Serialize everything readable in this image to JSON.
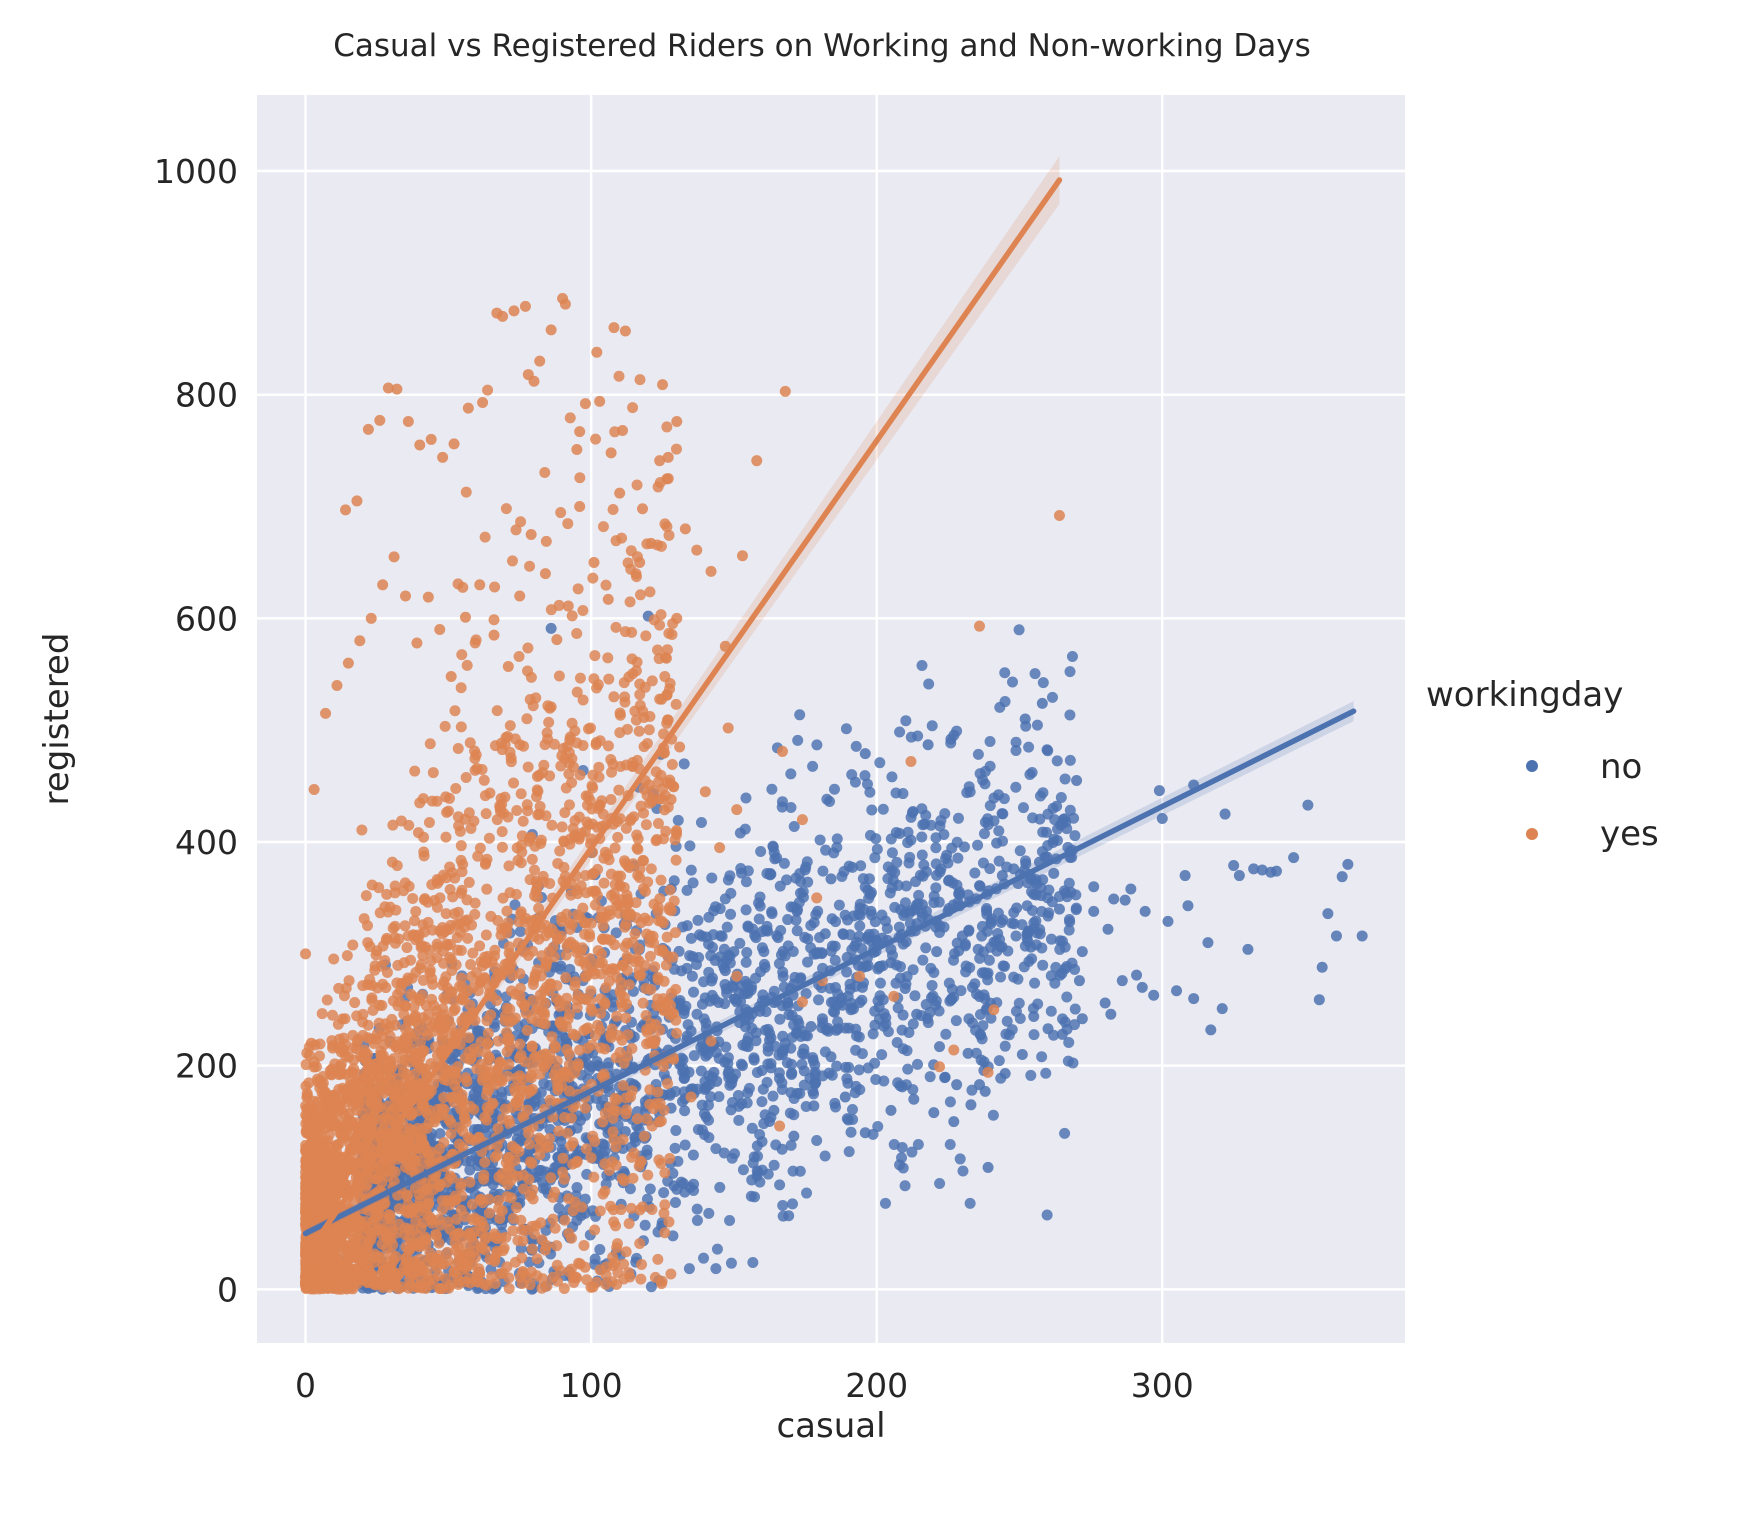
{
  "chart_data": {
    "type": "scatter",
    "title": "Casual vs Registered Riders on Working and Non-working Days",
    "xlabel": "casual",
    "ylabel": "registered",
    "xlim": [
      -17,
      385
    ],
    "ylim": [
      -48,
      1068
    ],
    "xticks": [
      0,
      100,
      200,
      300
    ],
    "yticks": [
      0,
      200,
      400,
      600,
      800,
      1000
    ],
    "grid": true,
    "legend": {
      "title": "workingday",
      "placement": "right"
    },
    "series": [
      {
        "name": "no",
        "color": "#4c72b0",
        "regression": {
          "x": [
            0,
            367
          ],
          "y": [
            50,
            517
          ]
        },
        "points": [
          [
            361,
            316
          ],
          [
            355,
            259
          ],
          [
            351,
            433
          ],
          [
            363,
            369
          ],
          [
            365,
            380
          ],
          [
            356,
            288
          ],
          [
            358,
            336
          ],
          [
            370,
            316
          ],
          [
            322,
            425
          ],
          [
            327,
            370
          ],
          [
            330,
            304
          ],
          [
            335,
            375
          ],
          [
            317,
            232
          ],
          [
            305,
            267
          ],
          [
            309,
            343
          ],
          [
            299,
            446
          ],
          [
            293,
            270
          ],
          [
            286,
            276
          ],
          [
            282,
            246
          ],
          [
            276,
            338
          ],
          [
            271,
            276
          ],
          [
            266,
            239
          ],
          [
            255,
            244
          ],
          [
            258,
            524
          ],
          [
            252,
            510
          ],
          [
            244,
            370
          ],
          [
            239,
            109
          ],
          [
            236,
            183
          ],
          [
            232,
            211
          ],
          [
            227,
            150
          ],
          [
            222,
            217
          ],
          [
            214,
            246
          ],
          [
            210,
            269
          ],
          [
            205,
            292
          ],
          [
            198,
            338
          ],
          [
            193,
            279
          ],
          [
            188,
            254
          ],
          [
            184,
            208
          ],
          [
            179,
            300
          ],
          [
            175,
            227
          ],
          [
            171,
            273
          ],
          [
            167,
            210
          ],
          [
            163,
            198
          ],
          [
            159,
            253
          ],
          [
            155,
            217
          ],
          [
            151,
            257
          ],
          [
            147,
            285
          ],
          [
            143,
            194
          ],
          [
            139,
            220
          ],
          [
            135,
            231
          ],
          [
            131,
            201
          ],
          [
            127,
            214
          ],
          [
            123,
            177
          ],
          [
            119,
            168
          ],
          [
            115,
            183
          ],
          [
            111,
            165
          ],
          [
            107,
            153
          ],
          [
            103,
            148
          ],
          [
            99,
            134
          ],
          [
            95,
            118
          ],
          [
            91,
            111
          ],
          [
            87,
            102
          ],
          [
            83,
            96
          ],
          [
            79,
            85
          ],
          [
            75,
            77
          ],
          [
            71,
            70
          ],
          [
            67,
            62
          ],
          [
            63,
            55
          ],
          [
            59,
            51
          ],
          [
            55,
            48
          ],
          [
            51,
            44
          ],
          [
            47,
            43
          ],
          [
            43,
            40
          ],
          [
            39,
            35
          ],
          [
            35,
            29
          ],
          [
            31,
            26
          ],
          [
            27,
            21
          ],
          [
            23,
            17
          ],
          [
            19,
            13
          ],
          [
            15,
            10
          ],
          [
            11,
            8
          ],
          [
            7,
            5
          ],
          [
            3,
            3
          ],
          [
            184,
            367
          ],
          [
            196,
            479
          ],
          [
            218,
            487
          ],
          [
            226,
            492
          ],
          [
            263,
            432
          ],
          [
            270,
            455
          ],
          [
            300,
            421
          ],
          [
            311,
            451
          ],
          [
            289,
            358
          ],
          [
            283,
            349
          ],
          [
            276,
            360
          ],
          [
            268,
            355
          ],
          [
            262,
            372
          ],
          [
            257,
            382
          ],
          [
            248,
            376
          ],
          [
            242,
            399
          ],
          [
            236,
            361
          ],
          [
            229,
            353
          ],
          [
            225,
            338
          ],
          [
            218,
            331
          ],
          [
            212,
            320
          ],
          [
            205,
            304
          ],
          [
            201,
            288
          ],
          [
            195,
            270
          ],
          [
            190,
            262
          ],
          [
            186,
            254
          ],
          [
            181,
            242
          ],
          [
            177,
            235
          ],
          [
            172,
            230
          ],
          [
            168,
            220
          ],
          [
            162,
            213
          ],
          [
            157,
            207
          ],
          [
            153,
            200
          ],
          [
            148,
            193
          ],
          [
            144,
            186
          ],
          [
            140,
            180
          ],
          [
            136,
            175
          ],
          [
            132,
            168
          ],
          [
            128,
            162
          ],
          [
            124,
            157
          ],
          [
            120,
            151
          ],
          [
            116,
            146
          ],
          [
            112,
            141
          ],
          [
            108,
            135
          ],
          [
            104,
            130
          ],
          [
            100,
            125
          ],
          [
            96,
            120
          ],
          [
            92,
            115
          ],
          [
            88,
            110
          ],
          [
            84,
            105
          ],
          [
            80,
            100
          ],
          [
            76,
            95
          ],
          [
            72,
            90
          ],
          [
            68,
            85
          ],
          [
            64,
            80
          ],
          [
            60,
            75
          ],
          [
            56,
            70
          ],
          [
            52,
            66
          ],
          [
            48,
            62
          ],
          [
            44,
            58
          ],
          [
            40,
            54
          ],
          [
            36,
            50
          ],
          [
            32,
            46
          ],
          [
            28,
            42
          ],
          [
            24,
            38
          ],
          [
            20,
            34
          ],
          [
            16,
            30
          ],
          [
            12,
            26
          ],
          [
            8,
            22
          ],
          [
            4,
            18
          ],
          [
            164,
            160
          ],
          [
            171,
            137
          ],
          [
            178,
            164
          ],
          [
            189,
            172
          ],
          [
            196,
            140
          ],
          [
            205,
            160
          ],
          [
            213,
            170
          ],
          [
            220,
            158
          ],
          [
            228,
            183
          ],
          [
            233,
            165
          ],
          [
            238,
            177
          ],
          [
            245,
            193
          ],
          [
            251,
            210
          ],
          [
            260,
            233
          ],
          [
            265,
            228
          ],
          [
            272,
            242
          ],
          [
            280,
            256
          ],
          [
            291,
            281
          ],
          [
            297,
            263
          ],
          [
            311,
            260
          ],
          [
            321,
            251
          ],
          [
            340,
            374
          ],
          [
            338,
            373
          ],
          [
            346,
            386
          ],
          [
            120,
            602
          ],
          [
            86,
            591
          ],
          [
            150,
            302
          ],
          [
            160,
            320
          ],
          [
            170,
            342
          ],
          [
            182,
            318
          ],
          [
            192,
            334
          ],
          [
            202,
            314
          ],
          [
            216,
            344
          ],
          [
            221,
            302
          ],
          [
            230,
            316
          ],
          [
            240,
            327
          ],
          [
            249,
            341
          ],
          [
            254,
            306
          ],
          [
            264,
            340
          ],
          [
            272,
            302
          ],
          [
            281,
            322
          ],
          [
            287,
            348
          ],
          [
            294,
            338
          ],
          [
            302,
            329
          ],
          [
            308,
            370
          ],
          [
            316,
            310
          ],
          [
            325,
            379
          ],
          [
            332,
            376
          ]
        ],
        "cluster": {
          "x": [
            20,
            270
          ],
          "slope": 1.1,
          "intercept": 70,
          "spread": 90
        }
      },
      {
        "name": "yes",
        "color": "#dd8452",
        "regression": {
          "x": [
            0,
            264
          ],
          "y": [
            30,
            992
          ]
        },
        "points": [
          [
            264,
            692
          ],
          [
            236,
            593
          ],
          [
            168,
            803
          ],
          [
            153,
            656
          ],
          [
            147,
            575
          ],
          [
            158,
            741
          ],
          [
            125,
            809
          ],
          [
            130,
            776
          ],
          [
            127,
            744
          ],
          [
            118,
            698
          ],
          [
            111,
            768
          ],
          [
            107,
            748
          ],
          [
            103,
            794
          ],
          [
            98,
            792
          ],
          [
            95,
            751
          ],
          [
            90,
            886
          ],
          [
            86,
            858
          ],
          [
            82,
            830
          ],
          [
            78,
            818
          ],
          [
            73,
            875
          ],
          [
            67,
            873
          ],
          [
            62,
            793
          ],
          [
            57,
            788
          ],
          [
            52,
            756
          ],
          [
            48,
            744
          ],
          [
            44,
            760
          ],
          [
            40,
            755
          ],
          [
            36,
            776
          ],
          [
            32,
            805
          ],
          [
            29,
            806
          ],
          [
            26,
            777
          ],
          [
            22,
            769
          ],
          [
            18,
            705
          ],
          [
            14,
            697
          ],
          [
            108,
            860
          ],
          [
            112,
            857
          ],
          [
            102,
            838
          ],
          [
            80,
            812
          ],
          [
            77,
            879
          ],
          [
            69,
            870
          ],
          [
            91,
            881
          ],
          [
            96,
            767
          ],
          [
            148,
            502
          ],
          [
            151,
            429
          ],
          [
            167,
            481
          ],
          [
            174,
            420
          ],
          [
            212,
            472
          ],
          [
            179,
            350
          ],
          [
            194,
            280
          ],
          [
            206,
            262
          ],
          [
            222,
            199
          ],
          [
            239,
            194
          ],
          [
            241,
            250
          ],
          [
            227,
            214
          ],
          [
            181,
            276
          ],
          [
            174,
            257
          ],
          [
            166,
            146
          ],
          [
            151,
            280
          ],
          [
            142,
            222
          ],
          [
            135,
            172
          ],
          [
            128,
            438
          ],
          [
            131,
            485
          ],
          [
            140,
            445
          ],
          [
            145,
            395
          ],
          [
            137,
            661
          ],
          [
            142,
            642
          ],
          [
            130,
            600
          ],
          [
            133,
            680
          ],
          [
            127,
            725
          ],
          [
            124,
            741
          ],
          [
            121,
            667
          ],
          [
            117,
            650
          ],
          [
            110,
            712
          ],
          [
            106,
            617
          ],
          [
            101,
            650
          ],
          [
            96,
            700
          ],
          [
            92,
            611
          ],
          [
            88,
            581
          ],
          [
            84,
            640
          ],
          [
            79,
            675
          ],
          [
            75,
            620
          ],
          [
            71,
            557
          ],
          [
            66,
            585
          ],
          [
            61,
            630
          ],
          [
            56,
            601
          ],
          [
            51,
            548
          ],
          [
            47,
            590
          ],
          [
            43,
            619
          ],
          [
            39,
            578
          ],
          [
            35,
            620
          ],
          [
            31,
            655
          ],
          [
            27,
            630
          ],
          [
            23,
            600
          ],
          [
            19,
            580
          ],
          [
            15,
            560
          ],
          [
            11,
            540
          ],
          [
            7,
            515
          ],
          [
            3,
            447
          ],
          [
            0,
            300
          ],
          [
            2,
            220
          ],
          [
            5,
            180
          ]
        ],
        "cluster": {
          "x": [
            0,
            130
          ],
          "slope": 2.4,
          "intercept": 60,
          "spread": 180
        }
      }
    ]
  }
}
